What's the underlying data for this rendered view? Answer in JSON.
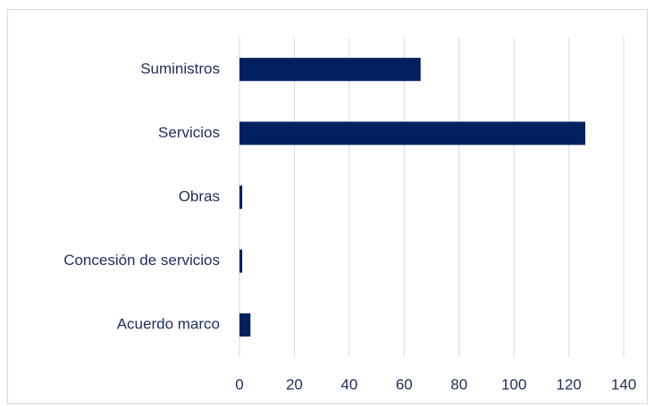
{
  "chart_data": {
    "type": "barh",
    "categories": [
      "Suministros",
      "Servicios",
      "Obras",
      "Concesión de servicios",
      "Acuerdo marco"
    ],
    "values": [
      66,
      126,
      1,
      1,
      4
    ],
    "color": "#002060",
    "xlim": [
      0,
      140
    ],
    "xticks": [
      0,
      20,
      40,
      60,
      80,
      100,
      120,
      140
    ],
    "grid": true
  }
}
